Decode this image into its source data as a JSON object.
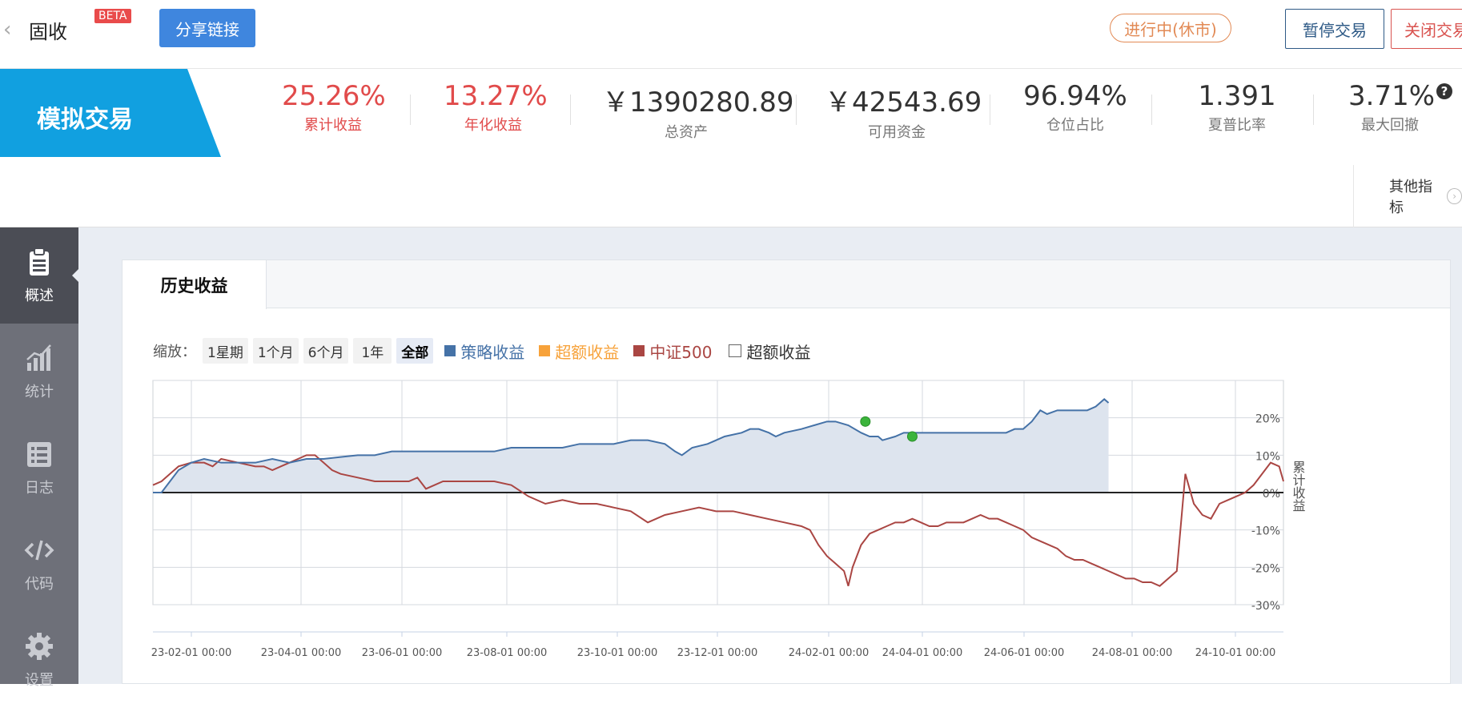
{
  "topbar": {
    "back_icon": "chevron-left-icon",
    "title": "固收",
    "beta": "BETA",
    "share_label": "分享链接",
    "status_label": "进行中(休市)",
    "pause_label": "暂停交易",
    "close_label": "关闭交易"
  },
  "banner": {
    "label": "模拟交易"
  },
  "metrics": [
    {
      "value": "25.26%",
      "label": "累计收益",
      "color": "#e14b4b"
    },
    {
      "value": "13.27%",
      "label": "年化收益",
      "color": "#e14b4b"
    },
    {
      "value": "￥1390280.89",
      "label": "总资产"
    },
    {
      "value": "￥42543.69",
      "label": "可用资金"
    },
    {
      "value": "96.94%",
      "label": "仓位占比"
    },
    {
      "value": "1.391",
      "label": "夏普比率"
    },
    {
      "value": "3.71%",
      "label": "最大回撤"
    }
  ],
  "help_icon": "question-icon",
  "other_metrics_label": "其他指标",
  "sidebar": [
    {
      "label": "概述",
      "icon": "clipboard-icon",
      "active": true
    },
    {
      "label": "统计",
      "icon": "bar-chart-icon"
    },
    {
      "label": "日志",
      "icon": "list-icon"
    },
    {
      "label": "代码",
      "icon": "code-icon"
    },
    {
      "label": "设置",
      "icon": "gear-icon"
    }
  ],
  "tab_label": "历史收益",
  "zoom": {
    "label": "缩放：",
    "options": [
      "1星期",
      "1个月",
      "6个月",
      "1年",
      "全部"
    ],
    "selected": "全部"
  },
  "legend": [
    {
      "label": "策略收益",
      "color": "#4572a7"
    },
    {
      "label": "超额收益",
      "color": "#f7a23a"
    },
    {
      "label": "中证500",
      "color": "#aa4643"
    }
  ],
  "checkbox_label": "超额收益",
  "chart_data": {
    "type": "line",
    "ylabel": "累计收益",
    "y_ticks": [
      "20%",
      "10%",
      "0%",
      "-10%",
      "-20%",
      "-30%"
    ],
    "ylim": [
      -30,
      30
    ],
    "x_ticks": [
      "23-02-01 00:00",
      "23-04-01 00:00",
      "23-06-01 00:00",
      "23-08-01 00:00",
      "23-10-01 00:00",
      "23-12-01 00:00",
      "24-02-01 00:00",
      "24-04-01 00:00",
      "24-06-01 00:00",
      "24-08-01 00:00",
      "24-10-01 00:00"
    ],
    "x_range": [
      "2023-01-10",
      "2024-11-12"
    ],
    "series": [
      {
        "name": "策略收益",
        "color": "#4572a7",
        "area_fill": "#dde4ee",
        "values": [
          [
            0,
            0
          ],
          [
            10,
            0
          ],
          [
            20,
            3
          ],
          [
            30,
            6
          ],
          [
            45,
            8
          ],
          [
            60,
            9
          ],
          [
            80,
            8
          ],
          [
            100,
            8
          ],
          [
            120,
            8
          ],
          [
            140,
            9
          ],
          [
            160,
            8
          ],
          [
            180,
            9
          ],
          [
            200,
            9
          ],
          [
            220,
            9.5
          ],
          [
            240,
            10
          ],
          [
            260,
            10
          ],
          [
            280,
            11
          ],
          [
            300,
            11
          ],
          [
            320,
            11
          ],
          [
            340,
            11
          ],
          [
            360,
            11
          ],
          [
            380,
            11
          ],
          [
            400,
            11
          ],
          [
            420,
            12
          ],
          [
            440,
            12
          ],
          [
            460,
            12
          ],
          [
            480,
            12
          ],
          [
            500,
            13
          ],
          [
            520,
            13
          ],
          [
            540,
            13
          ],
          [
            560,
            14
          ],
          [
            580,
            14
          ],
          [
            600,
            13
          ],
          [
            612,
            11
          ],
          [
            620,
            10
          ],
          [
            632,
            12
          ],
          [
            650,
            13
          ],
          [
            660,
            14
          ],
          [
            670,
            15
          ],
          [
            690,
            16
          ],
          [
            700,
            17
          ],
          [
            710,
            17
          ],
          [
            722,
            16
          ],
          [
            730,
            15
          ],
          [
            740,
            16
          ],
          [
            760,
            17
          ],
          [
            775,
            18
          ],
          [
            790,
            19
          ],
          [
            800,
            19
          ],
          [
            815,
            18
          ],
          [
            830,
            16
          ],
          [
            840,
            15
          ],
          [
            850,
            15
          ],
          [
            855,
            14
          ],
          [
            870,
            15
          ],
          [
            880,
            16
          ],
          [
            900,
            16
          ],
          [
            920,
            16
          ],
          [
            940,
            16
          ],
          [
            960,
            16
          ],
          [
            980,
            16
          ],
          [
            1000,
            16
          ],
          [
            1010,
            17
          ],
          [
            1020,
            17
          ],
          [
            1030,
            19
          ],
          [
            1040,
            22
          ],
          [
            1048,
            21
          ],
          [
            1060,
            22
          ],
          [
            1070,
            22
          ],
          [
            1080,
            22
          ],
          [
            1095,
            22
          ],
          [
            1105,
            23
          ],
          [
            1115,
            25
          ],
          [
            1120,
            24
          ]
        ]
      },
      {
        "name": "中证500",
        "color": "#aa4643",
        "values": [
          [
            0,
            2
          ],
          [
            10,
            3
          ],
          [
            20,
            5
          ],
          [
            30,
            7
          ],
          [
            45,
            8
          ],
          [
            60,
            8
          ],
          [
            70,
            7
          ],
          [
            80,
            9
          ],
          [
            100,
            8
          ],
          [
            120,
            7
          ],
          [
            130,
            7
          ],
          [
            140,
            6
          ],
          [
            150,
            7
          ],
          [
            160,
            8
          ],
          [
            170,
            9
          ],
          [
            180,
            10
          ],
          [
            190,
            10
          ],
          [
            200,
            8
          ],
          [
            210,
            6
          ],
          [
            220,
            5
          ],
          [
            240,
            4
          ],
          [
            260,
            3
          ],
          [
            280,
            3
          ],
          [
            300,
            3
          ],
          [
            310,
            4
          ],
          [
            320,
            1
          ],
          [
            340,
            3
          ],
          [
            360,
            3
          ],
          [
            380,
            3
          ],
          [
            400,
            3
          ],
          [
            420,
            2
          ],
          [
            440,
            -1
          ],
          [
            460,
            -3
          ],
          [
            480,
            -2
          ],
          [
            500,
            -3
          ],
          [
            520,
            -3
          ],
          [
            540,
            -4
          ],
          [
            560,
            -5
          ],
          [
            580,
            -8
          ],
          [
            600,
            -6
          ],
          [
            620,
            -5
          ],
          [
            640,
            -4
          ],
          [
            660,
            -5
          ],
          [
            680,
            -5
          ],
          [
            700,
            -6
          ],
          [
            720,
            -7
          ],
          [
            740,
            -8
          ],
          [
            760,
            -9
          ],
          [
            770,
            -10
          ],
          [
            780,
            -14
          ],
          [
            790,
            -17
          ],
          [
            800,
            -19
          ],
          [
            810,
            -21
          ],
          [
            815,
            -25
          ],
          [
            820,
            -20
          ],
          [
            830,
            -14
          ],
          [
            840,
            -11
          ],
          [
            850,
            -10
          ],
          [
            860,
            -9
          ],
          [
            870,
            -8
          ],
          [
            880,
            -8
          ],
          [
            890,
            -7
          ],
          [
            900,
            -8
          ],
          [
            910,
            -9
          ],
          [
            920,
            -9
          ],
          [
            930,
            -8
          ],
          [
            940,
            -8
          ],
          [
            950,
            -8
          ],
          [
            960,
            -7
          ],
          [
            970,
            -6
          ],
          [
            980,
            -7
          ],
          [
            990,
            -7
          ],
          [
            1000,
            -8
          ],
          [
            1010,
            -9
          ],
          [
            1020,
            -10
          ],
          [
            1030,
            -12
          ],
          [
            1040,
            -13
          ],
          [
            1050,
            -14
          ],
          [
            1060,
            -15
          ],
          [
            1070,
            -17
          ],
          [
            1080,
            -18
          ],
          [
            1090,
            -18
          ],
          [
            1100,
            -19
          ],
          [
            1110,
            -20
          ],
          [
            1120,
            -21
          ],
          [
            1130,
            -22
          ],
          [
            1140,
            -23
          ],
          [
            1150,
            -23
          ],
          [
            1160,
            -24
          ],
          [
            1170,
            -24
          ],
          [
            1180,
            -25
          ],
          [
            1190,
            -23
          ],
          [
            1200,
            -21
          ],
          [
            1210,
            5
          ],
          [
            1220,
            -3
          ],
          [
            1230,
            -6
          ],
          [
            1240,
            -7
          ],
          [
            1250,
            -3
          ],
          [
            1260,
            -2
          ],
          [
            1270,
            -1
          ],
          [
            1280,
            0
          ],
          [
            1290,
            2
          ],
          [
            1300,
            5
          ],
          [
            1310,
            8
          ],
          [
            1320,
            7
          ],
          [
            1325,
            3
          ]
        ]
      }
    ],
    "markers": [
      {
        "x": 835,
        "y": 19,
        "color": "#3cb43c"
      },
      {
        "x": 890,
        "y": 15,
        "color": "#3cb43c"
      }
    ],
    "x_max": 1325
  }
}
